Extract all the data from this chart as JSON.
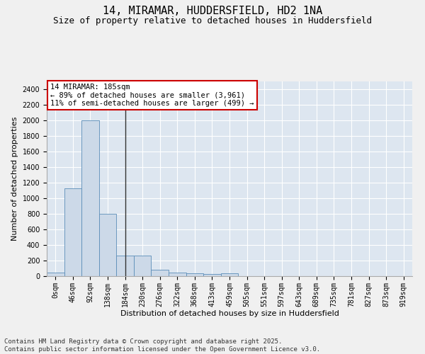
{
  "title_line1": "14, MIRAMAR, HUDDERSFIELD, HD2 1NA",
  "title_line2": "Size of property relative to detached houses in Huddersfield",
  "xlabel": "Distribution of detached houses by size in Huddersfield",
  "ylabel": "Number of detached properties",
  "bar_color": "#ccd9e8",
  "bar_edge_color": "#5b8db8",
  "background_color": "#dde6f0",
  "fig_background": "#f0f0f0",
  "annotation_text": "14 MIRAMAR: 185sqm\n← 89% of detached houses are smaller (3,961)\n11% of semi-detached houses are larger (499) →",
  "vline_x_idx": 4,
  "vline_color": "#333333",
  "categories": [
    "0sqm",
    "46sqm",
    "92sqm",
    "138sqm",
    "184sqm",
    "230sqm",
    "276sqm",
    "322sqm",
    "368sqm",
    "413sqm",
    "459sqm",
    "505sqm",
    "551sqm",
    "597sqm",
    "643sqm",
    "689sqm",
    "735sqm",
    "781sqm",
    "827sqm",
    "873sqm",
    "919sqm"
  ],
  "values": [
    50,
    1130,
    2000,
    800,
    260,
    260,
    85,
    50,
    35,
    30,
    40,
    0,
    0,
    0,
    0,
    0,
    0,
    0,
    0,
    0,
    0
  ],
  "ylim": [
    0,
    2500
  ],
  "yticks": [
    0,
    200,
    400,
    600,
    800,
    1000,
    1200,
    1400,
    1600,
    1800,
    2000,
    2200,
    2400
  ],
  "footer": "Contains HM Land Registry data © Crown copyright and database right 2025.\nContains public sector information licensed under the Open Government Licence v3.0.",
  "annotation_box_color": "#ffffff",
  "annotation_box_edge": "#cc0000",
  "title_fontsize": 11,
  "subtitle_fontsize": 9,
  "axis_label_fontsize": 8,
  "tick_fontsize": 7,
  "footer_fontsize": 6.5,
  "annotation_fontsize": 7.5
}
